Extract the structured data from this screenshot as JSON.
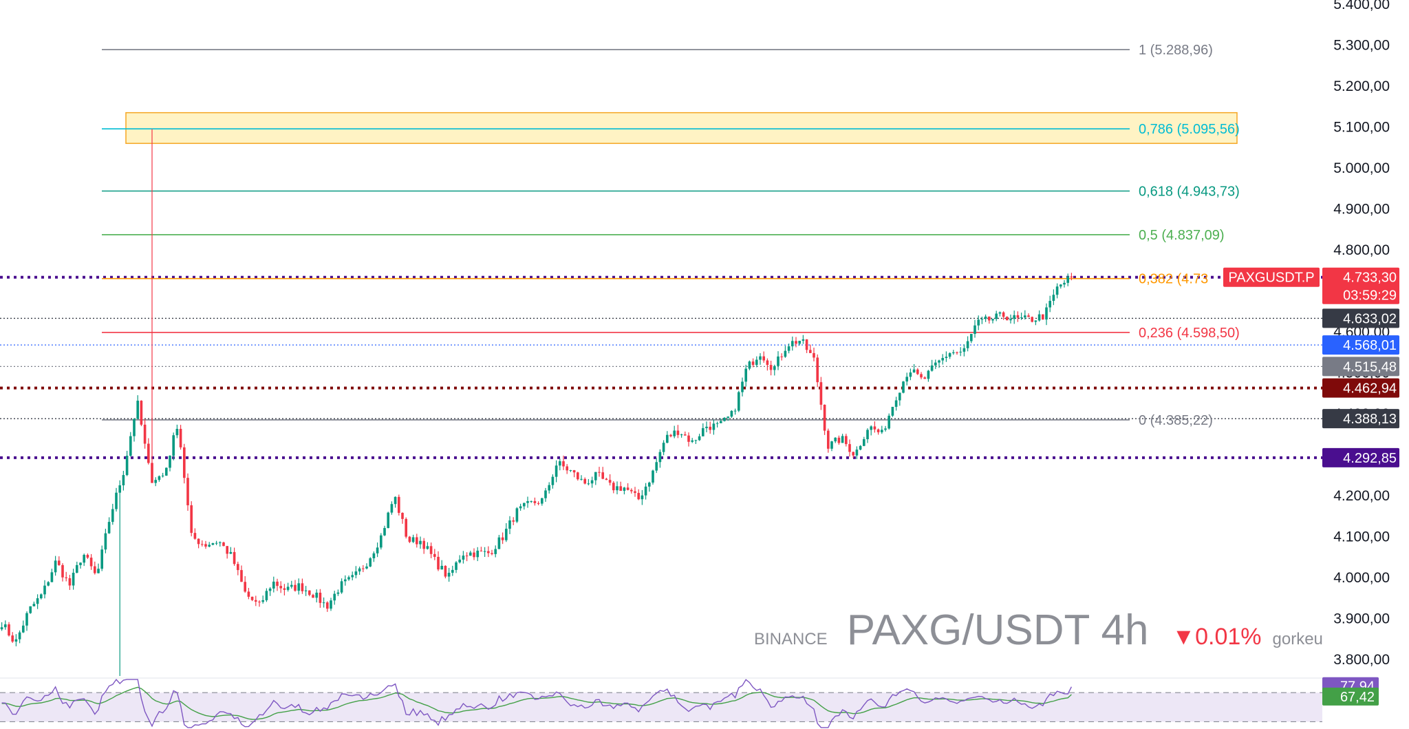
{
  "watermark": {
    "exchange": "BINANCE",
    "symbol": "PAXG/USDT 4h",
    "change": "▼0.01%",
    "user": "gorkeu"
  },
  "colors": {
    "up": "#089981",
    "down": "#f23645",
    "purple": "#4a0e8f",
    "darkred": "#7f0a0a",
    "blue": "#2962ff",
    "darkgray": "#363a45",
    "gray": "#787b86",
    "zone_fill": "#fff3c4",
    "zone_border": "#f5a623"
  },
  "chart_data": {
    "type": "line",
    "title": "PAXG/USDT 4h",
    "ylim": [
      3760,
      5410
    ],
    "y_ticks": [
      "3.800,00",
      "3.900,00",
      "4.000,00",
      "4.100,00",
      "4.200,00",
      "4.300,00",
      "4.400,00",
      "4.500,00",
      "4.600,00",
      "4.700,00",
      "4.800,00",
      "4.900,00",
      "5.000,00",
      "5.100,00",
      "5.200,00",
      "5.300,00",
      "5.400,00"
    ],
    "y_tick_values": [
      3800,
      3900,
      4000,
      4100,
      4200,
      4300,
      4400,
      4500,
      4600,
      4700,
      4800,
      4900,
      5000,
      5100,
      5200,
      5300,
      5400
    ],
    "price_path": [
      3890,
      3840,
      3920,
      3960,
      4040,
      3980,
      4060,
      4000,
      4150,
      4260,
      4430,
      4240,
      4250,
      4380,
      4100,
      4080,
      4090,
      4050,
      3960,
      3930,
      3990,
      3970,
      3980,
      3960,
      3930,
      3980,
      4000,
      4040,
      4100,
      4200,
      4090,
      4090,
      4040,
      4000,
      4060,
      4060,
      4060,
      4100,
      4160,
      4180,
      4190,
      4280,
      4260,
      4230,
      4250,
      4220,
      4220,
      4190,
      4250,
      4340,
      4360,
      4330,
      4370,
      4370,
      4400,
      4510,
      4550,
      4510,
      4570,
      4580,
      4530,
      4320,
      4340,
      4300,
      4370,
      4350,
      4440,
      4510,
      4480,
      4520,
      4550,
      4550,
      4620,
      4630,
      4640,
      4630,
      4630,
      4640,
      4710,
      4733
    ],
    "price_path_range": "oldest to latest 4h candles",
    "spike_high": 5095,
    "current_price": "4.733,30",
    "countdown": "03:59:29",
    "symbol_tag": "PAXGUSDT.P",
    "fib_levels": [
      {
        "label": "1 (5.288,96)",
        "value": 5288.96,
        "color": "#787b86"
      },
      {
        "label": "0,786 (5.095,56)",
        "value": 5095.56,
        "color": "#00bcd4"
      },
      {
        "label": "0,618 (4.943,73)",
        "value": 4943.73,
        "color": "#089981"
      },
      {
        "label": "0,5 (4.837,09)",
        "value": 4837.09,
        "color": "#4caf50"
      },
      {
        "label": "0,382 (4.73",
        "value": 4730.0,
        "color": "#ff9800"
      },
      {
        "label": "0,236 (4.598,50)",
        "value": 4598.5,
        "color": "#f23645"
      },
      {
        "label": "0 (4.385,22)",
        "value": 4385.22,
        "color": "#787b86"
      }
    ],
    "fib_zone": {
      "low": 5060,
      "high": 5135
    },
    "horizontal_lines": [
      {
        "value": 4733.3,
        "style": "dotted-thick",
        "color": "#4a0e8f"
      },
      {
        "value": 4633.02,
        "style": "dotted",
        "color": "#363a45"
      },
      {
        "value": 4568.01,
        "style": "dotted",
        "color": "#2962ff"
      },
      {
        "value": 4515.48,
        "style": "dotted",
        "color": "#787b86"
      },
      {
        "value": 4462.94,
        "style": "dotted-thick",
        "color": "#7f0a0a"
      },
      {
        "value": 4388.13,
        "style": "dotted",
        "color": "#363a45"
      },
      {
        "value": 4292.85,
        "style": "dotted-thick",
        "color": "#4a0e8f"
      }
    ],
    "price_tags": [
      {
        "text": "4.633,02",
        "value": 4633.02,
        "color": "#363a45"
      },
      {
        "text": "4.568,01",
        "value": 4568.01,
        "color": "#2962ff"
      },
      {
        "text": "4.515,48",
        "value": 4515.48,
        "color": "#787b86"
      },
      {
        "text": "4.462,94",
        "value": 4462.94,
        "color": "#7f0a0a"
      },
      {
        "text": "4.388,13",
        "value": 4388.13,
        "color": "#363a45"
      },
      {
        "text": "4.292,85",
        "value": 4292.85,
        "color": "#4a0e8f"
      }
    ],
    "rsi": {
      "value_label": "77,94",
      "ma_label": "67,42",
      "value": 77.94,
      "ma": 67.42,
      "upper_band": 70,
      "lower_band": 30
    }
  }
}
